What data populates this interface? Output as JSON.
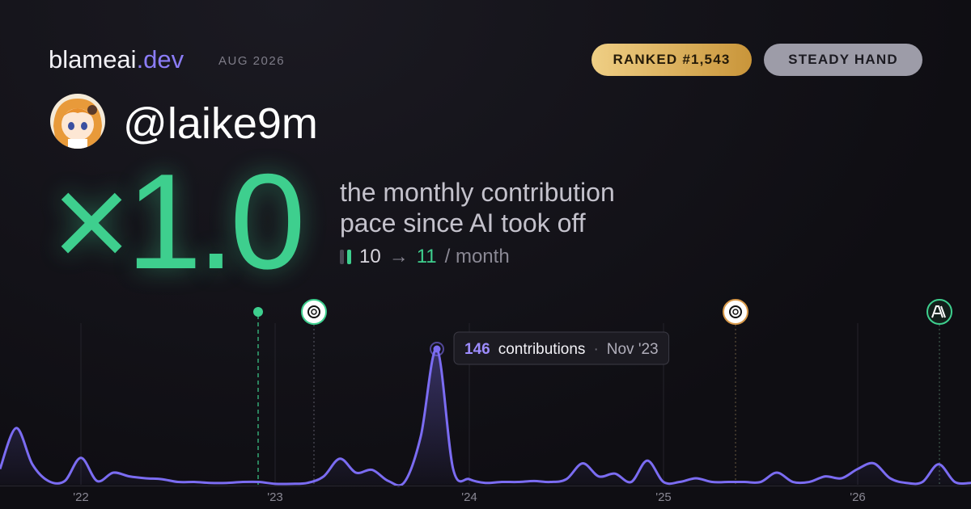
{
  "brand": {
    "name": "blameai",
    "tld": ".dev",
    "date": "AUG 2026"
  },
  "badges": [
    "RANKED #1,543",
    "STEADY HAND"
  ],
  "user": {
    "handle": "@laike9m"
  },
  "headline": {
    "multiplier": "×1.0",
    "lines": [
      "the monthly contribution",
      "pace since AI took off"
    ],
    "before": 10,
    "arrow": "→",
    "after": 11,
    "unit": "/ month"
  },
  "chart_data": {
    "type": "line",
    "categories": [
      null,
      null,
      null,
      null,
      null,
      "'22",
      null,
      null,
      null,
      null,
      null,
      null,
      null,
      null,
      null,
      null,
      null,
      "'23",
      null,
      null,
      null,
      null,
      null,
      null,
      null,
      null,
      null,
      null,
      null,
      "'24",
      null,
      null,
      null,
      null,
      null,
      null,
      null,
      null,
      null,
      null,
      null,
      "'25",
      null,
      null,
      null,
      null,
      null,
      null,
      null,
      null,
      null,
      null,
      null,
      "'26",
      null,
      null,
      null,
      null,
      null,
      null,
      null
    ],
    "series": [
      {
        "color": "#7b6cf2",
        "values": [
          17,
          61,
          22,
          4,
          4,
          29,
          4,
          13,
          9,
          7,
          6,
          3,
          3,
          2,
          2,
          3,
          3,
          1,
          1,
          2,
          9,
          28,
          13,
          16,
          4,
          3,
          52,
          146,
          17,
          6,
          2,
          3,
          3,
          4,
          3,
          6,
          23,
          9,
          12,
          3,
          26,
          3,
          3,
          7,
          3,
          3,
          3,
          3,
          13,
          3,
          3,
          9,
          7,
          17,
          23,
          7,
          2,
          3,
          22,
          3,
          2
        ]
      }
    ],
    "ylim": [
      0,
      146
    ],
    "tooltip": {
      "label": "contributions",
      "separator": "·",
      "date": "Nov '23"
    }
  }
}
